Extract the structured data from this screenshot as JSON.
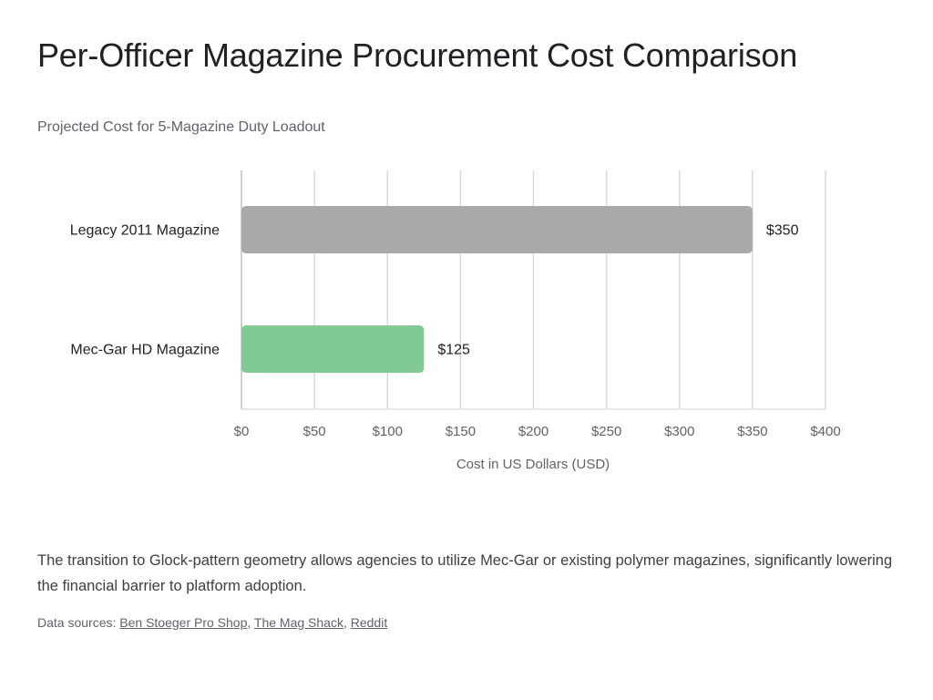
{
  "chart_data": {
    "type": "bar",
    "orientation": "horizontal",
    "title": "Per-Officer Magazine Procurement Cost Comparison",
    "subtitle": "Projected Cost for 5-Magazine Duty Loadout",
    "categories": [
      "Legacy 2011 Magazine",
      "Mec-Gar HD Magazine"
    ],
    "values": [
      350,
      125
    ],
    "data_labels": [
      "$350",
      "$125"
    ],
    "colors": [
      "#a9a9a9",
      "#81c995"
    ],
    "xlabel": "Cost in US Dollars (USD)",
    "ylabel": "",
    "xlim": [
      0,
      400
    ],
    "xticks": [
      0,
      50,
      100,
      150,
      200,
      250,
      300,
      350,
      400
    ],
    "xtick_labels": [
      "$0",
      "$50",
      "$100",
      "$150",
      "$200",
      "$250",
      "$300",
      "$350",
      "$400"
    ],
    "grid": true,
    "legend": "none"
  },
  "description": "The transition to Glock-pattern geometry allows agencies to utilize Mec-Gar or existing polymer magazines, significantly lowering the financial barrier to platform adoption.",
  "sources": {
    "label": "Data sources:",
    "links": [
      "Ben Stoeger Pro Shop",
      "The Mag Shack",
      "Reddit"
    ]
  }
}
